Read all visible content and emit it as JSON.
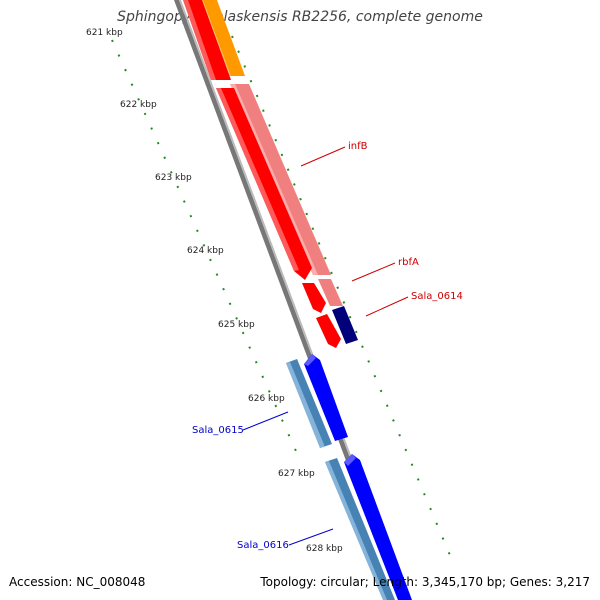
{
  "title": "Sphingopyxis alaskensis RB2256, complete genome",
  "accession": "Accession: NC_008048",
  "topology": "Topology: circular; Length: 3,345,170 bp; Genes: 3,217",
  "ruler": [
    {
      "label": "621 kbp"
    },
    {
      "label": "622 kbp"
    },
    {
      "label": "623 kbp"
    },
    {
      "label": "624 kbp"
    },
    {
      "label": "625 kbp"
    },
    {
      "label": "626 kbp"
    },
    {
      "label": "627 kbp"
    },
    {
      "label": "628 kbp"
    }
  ],
  "gene_labels": {
    "infB": "infB",
    "rbfA": "rbfA",
    "sala0614": "Sala_0614",
    "sala0615": "Sala_0615",
    "sala0616": "Sala_0616"
  },
  "colors": {
    "forward_cds": "#ff0000",
    "forward_gene": "#f08080",
    "reverse_cds": "#0000ff",
    "reverse_gene": "#4682b4",
    "dark_gene": "#00007a",
    "orange_gene": "#ff9900",
    "backbone": "#808080",
    "tick": "#228b22",
    "label_forward": "#cc0000",
    "label_reverse": "#0000cc"
  }
}
